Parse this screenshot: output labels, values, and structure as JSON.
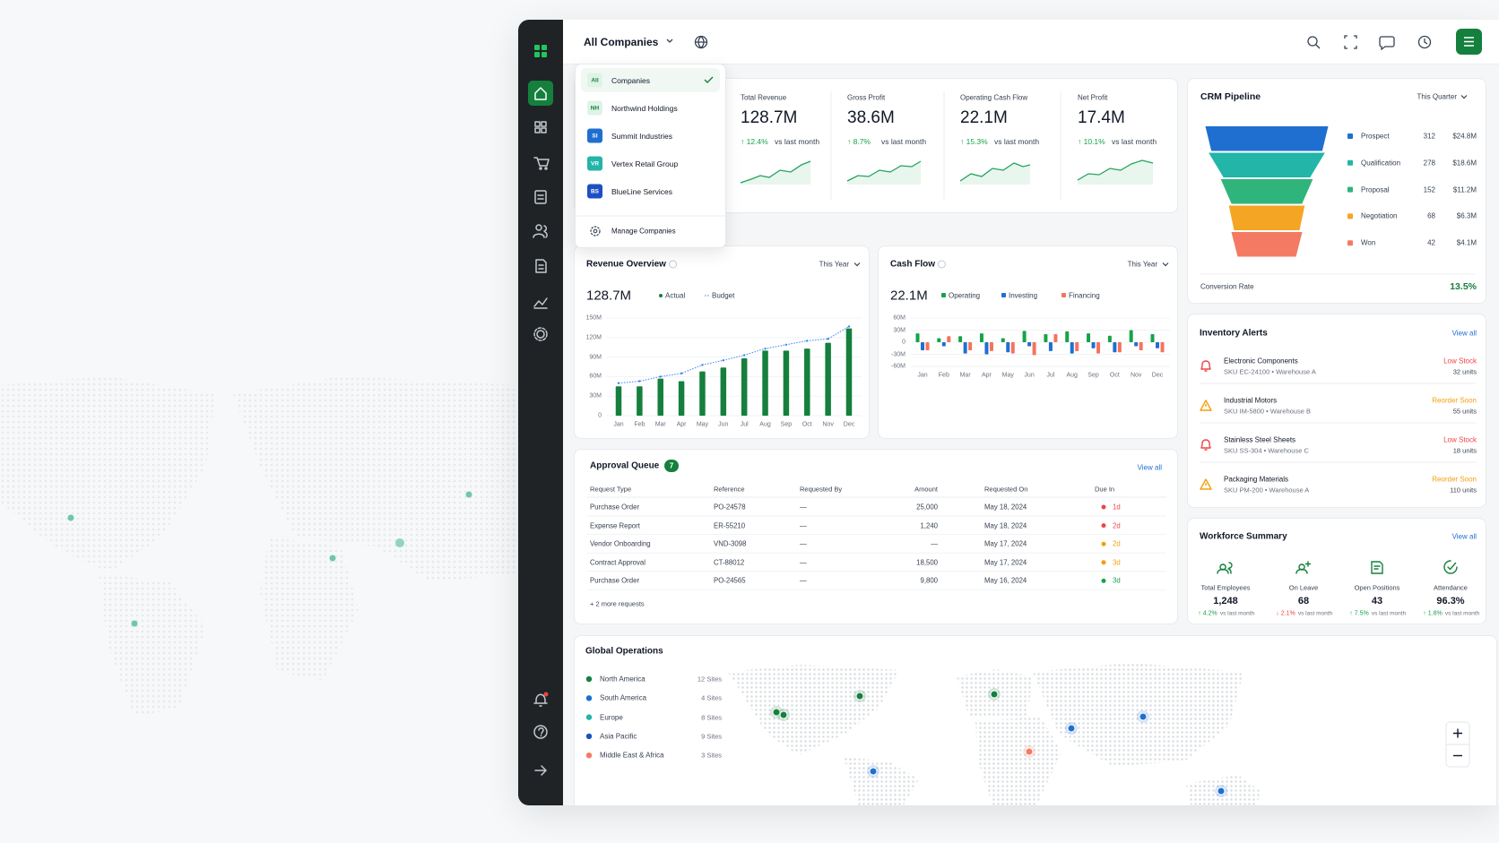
{
  "header": {
    "selector": "All Companies"
  },
  "company_menu": {
    "items": [
      {
        "badge": "All",
        "name": "Companies",
        "color": "#dff3e6",
        "text_color": "#15803d"
      },
      {
        "badge": "NH",
        "name": "Northwind Holdings",
        "color": "#dff3e6",
        "text_color": "#15803d"
      },
      {
        "badge": "SI",
        "name": "Summit Industries",
        "color": "#1f6fd1",
        "text_color": "#ffffff"
      },
      {
        "badge": "VR",
        "name": "Vertex Retail Group",
        "color": "#22b5a8",
        "text_color": "#ffffff"
      },
      {
        "badge": "BS",
        "name": "BlueLine Services",
        "color": "#1d4fc4",
        "text_color": "#ffffff"
      }
    ],
    "footer": "Manage Companies"
  },
  "kpis": [
    {
      "label": "Total Revenue",
      "value": "128.7M",
      "change": "↑ 12.4%",
      "note": "vs last month"
    },
    {
      "label": "Gross Profit",
      "value": "38.6M",
      "change": "↑ 8.7%",
      "note": "vs last month"
    },
    {
      "label": "Operating Cash Flow",
      "value": "22.1M",
      "change": "↑ 15.3%",
      "note": "vs last month"
    },
    {
      "label": "Net Profit",
      "value": "17.4M",
      "change": "↑ 10.1%",
      "note": "vs last month"
    }
  ],
  "chart_data": [
    {
      "type": "bar",
      "title": "Revenue Overview",
      "period": "This Year",
      "headline": "128.7M",
      "categories": [
        "Jan",
        "Feb",
        "Mar",
        "Apr",
        "May",
        "Jun",
        "Jul",
        "Aug",
        "Sep",
        "Oct",
        "Nov",
        "Dec"
      ],
      "series": [
        {
          "name": "Actual",
          "color": "#15803d",
          "values": [
            45,
            45,
            57,
            53,
            68,
            74,
            88,
            100,
            100,
            103,
            112,
            134
          ]
        },
        {
          "name": "Budget",
          "color": "#3b82f6",
          "type": "line",
          "values": [
            50,
            53,
            60,
            65,
            78,
            85,
            93,
            103,
            109,
            115,
            118,
            137
          ]
        }
      ],
      "ylim": [
        0,
        150
      ],
      "yticks": [
        0,
        {
          "value": 30,
          "label": "30M"
        },
        {
          "value": 60,
          "label": "60M"
        },
        {
          "value": 90,
          "label": "90M"
        },
        {
          "value": 120,
          "label": "120M"
        },
        {
          "value": 150,
          "label": "150M"
        }
      ],
      "grid": true
    },
    {
      "type": "bar",
      "title": "Cash Flow",
      "period": "This Year",
      "headline": "22.1M",
      "categories": [
        "Jan",
        "Feb",
        "Mar",
        "Apr",
        "May",
        "Jun",
        "Jul",
        "Aug",
        "Sep",
        "Oct",
        "Nov",
        "Dec"
      ],
      "series": [
        {
          "name": "Operating",
          "color": "#15a34a",
          "values": [
            22,
            10,
            15,
            22,
            10,
            28,
            20,
            27,
            22,
            16,
            30,
            20
          ]
        },
        {
          "name": "Investing",
          "color": "#1f6fd1",
          "values": [
            -20,
            -10,
            -28,
            -30,
            -25,
            -10,
            -22,
            -28,
            -15,
            -25,
            -10,
            -15
          ]
        },
        {
          "name": "Financing",
          "color": "#f4735f",
          "values": [
            -20,
            15,
            -20,
            -22,
            -28,
            -32,
            20,
            -22,
            -28,
            -25,
            -20,
            -25
          ]
        }
      ],
      "ylim": [
        -60,
        60
      ],
      "yticks": [
        {
          "value": -60,
          "label": "-60M"
        },
        {
          "value": -30,
          "label": "-30M"
        },
        0,
        {
          "value": 30,
          "label": "30M"
        },
        {
          "value": 60,
          "label": "60M"
        }
      ],
      "grid": true
    },
    {
      "type": "funnel",
      "title": "CRM Pipeline",
      "period": "This Quarter",
      "categories": [
        "Prospect",
        "Qualification",
        "Proposal",
        "Negotiation",
        "Won"
      ],
      "values": [
        312,
        278,
        152,
        68,
        42
      ],
      "amounts": [
        "$24.8M",
        "$18.6M",
        "$11.2M",
        "$6.3M",
        "$4.1M"
      ],
      "colors": [
        "#1f6fd1",
        "#22b5a8",
        "#2fb47c",
        "#f5a524",
        "#f47a63"
      ],
      "footer_label": "Conversion Rate",
      "footer_value": "13.5%"
    }
  ],
  "approvals": {
    "title": "Approval Queue",
    "count": 7,
    "link": "View all",
    "columns": [
      "Request Type",
      "Reference",
      "Requested By",
      "Amount",
      "Requested On",
      "Due In"
    ],
    "rows": [
      [
        "Purchase Order",
        "PO-24578",
        "—",
        "25,000",
        "May 18, 2024",
        "1d"
      ],
      [
        "Expense Report",
        "ER-55210",
        "—",
        "1,240",
        "May 18, 2024",
        "2d"
      ],
      [
        "Vendor Onboarding",
        "VND-3098",
        "—",
        "—",
        "May 17, 2024",
        "2d"
      ],
      [
        "Contract Approval",
        "CT-88012",
        "—",
        "18,500",
        "May 17, 2024",
        "3d"
      ],
      [
        "Purchase Order",
        "PO-24565",
        "—",
        "9,800",
        "May 16, 2024",
        "3d"
      ]
    ],
    "due_colors": [
      "#ef4444",
      "#ef4444",
      "#f59e0b",
      "#f59e0b",
      "#16a34a"
    ],
    "more": "+ 2 more requests"
  },
  "inventory": {
    "title": "Inventory Alerts",
    "link": "View all",
    "items": [
      {
        "name": "Electronic Components",
        "sku": "SKU EC-24100 • Warehouse A",
        "status": "Low Stock",
        "units": "32 units",
        "color": "#ef4444",
        "icon": "bell"
      },
      {
        "name": "Industrial Motors",
        "sku": "SKU IM-5800 • Warehouse B",
        "status": "Reorder Soon",
        "units": "55 units",
        "color": "#f59e0b",
        "icon": "warning"
      },
      {
        "name": "Stainless Steel Sheets",
        "sku": "SKU SS-304 • Warehouse C",
        "status": "Low Stock",
        "units": "18 units",
        "color": "#ef4444",
        "icon": "bell"
      },
      {
        "name": "Packaging Materials",
        "sku": "SKU PM-200 • Warehouse A",
        "status": "Reorder Soon",
        "units": "110 units",
        "color": "#f59e0b",
        "icon": "warning"
      }
    ]
  },
  "workforce": {
    "title": "Workforce Summary",
    "link": "View all",
    "items": [
      {
        "label": "Total Employees",
        "value": "1,248",
        "change": "↑ 4.2%",
        "note": "vs last month",
        "color": "#16a34a"
      },
      {
        "label": "On Leave",
        "value": "68",
        "change": "↓ 2.1%",
        "note": "vs last month",
        "color": "#ef4444"
      },
      {
        "label": "Open Positions",
        "value": "43",
        "change": "↑ 7.5%",
        "note": "vs last month",
        "color": "#16a34a"
      },
      {
        "label": "Attendance",
        "value": "96.3%",
        "change": "↑ 1.8%",
        "note": "vs last month",
        "color": "#16a34a"
      }
    ]
  },
  "global_ops": {
    "title": "Global Operations",
    "regions": [
      {
        "name": "North America",
        "sites": "12 Sites",
        "color": "#15803d"
      },
      {
        "name": "South America",
        "sites": "4 Sites",
        "color": "#1f6fd1"
      },
      {
        "name": "Europe",
        "sites": "8 Sites",
        "color": "#22b5a8"
      },
      {
        "name": "Asia Pacific",
        "sites": "9 Sites",
        "color": "#1d4fc4"
      },
      {
        "name": "Middle East & Africa",
        "sites": "3 Sites",
        "color": "#f47a63"
      }
    ]
  }
}
